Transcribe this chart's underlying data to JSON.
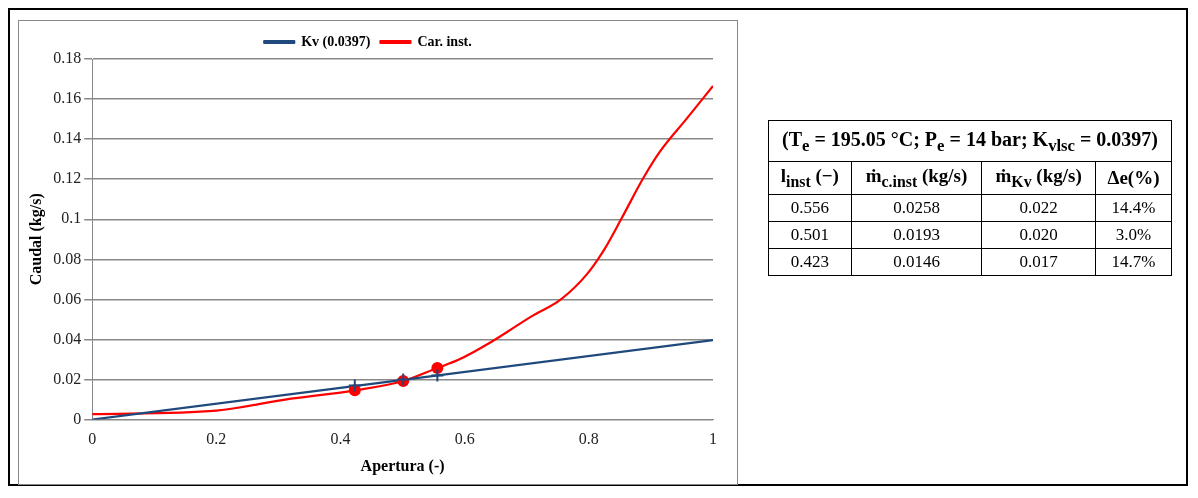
{
  "chart_data": [
    {
      "type": "line",
      "xlabel": "Apertura (-)",
      "ylabel": "Caudal (kg/s)",
      "xlim": [
        0,
        1
      ],
      "xticks": [
        0,
        0.2,
        0.4,
        0.6,
        0.8,
        1
      ],
      "ylim": [
        0,
        0.18
      ],
      "yticks": [
        0,
        0.02,
        0.04,
        0.06,
        0.08,
        0.1,
        0.12,
        0.14,
        0.16,
        0.18
      ],
      "grid": "y",
      "legend": "top",
      "marker": "none",
      "series": [
        {
          "name": "Kv (0.0397)",
          "color": "#1f497d",
          "x": [
            0,
            1
          ],
          "values": [
            0,
            0.0397
          ]
        },
        {
          "name": "Car. inst.",
          "color": "#ff0000",
          "x": [
            0,
            0.2,
            0.311,
            0.423,
            0.501,
            0.556,
            0.589,
            0.644,
            0.707,
            0.755,
            0.797,
            0.825,
            0.853,
            0.888,
            0.915,
            0.957,
            1
          ],
          "values": [
            0.0027,
            0.0045,
            0.01,
            0.0146,
            0.0193,
            0.0258,
            0.0297,
            0.039,
            0.0514,
            0.06,
            0.0726,
            0.085,
            0.1006,
            0.1207,
            0.134,
            0.15,
            0.1665
          ]
        },
        {
          "type": "scatter",
          "color": "#ff0000",
          "marker": "circle",
          "x": [
            0.556,
            0.501,
            0.423
          ],
          "values": [
            0.0258,
            0.0193,
            0.0146
          ]
        },
        {
          "type": "scatter",
          "color": "#1f497d",
          "marker": "cross",
          "x": [
            0.556,
            0.501,
            0.423
          ],
          "values": [
            0.022,
            0.02,
            0.017
          ]
        }
      ]
    },
    {
      "type": "other",
      "title": "(T$_{e}$ = 195.05 °C; P$_{e}$ = 14 bar; K$_{vlsc}$ = 0.0397)",
      "categories": [
        "l$_{inst}$ (−)",
        "ṁ$_{c.inst}$ (kg/s)",
        "ṁ$_{Kv}$ (kg/s)",
        "Δe(%)"
      ],
      "annotations": [
        "0.556",
        "0.0258",
        "0.022",
        "14.4%",
        "0.501",
        "0.0193",
        "0.020",
        "3.0%",
        "0.423",
        "0.0146",
        "0.017",
        "14.7%"
      ]
    }
  ]
}
